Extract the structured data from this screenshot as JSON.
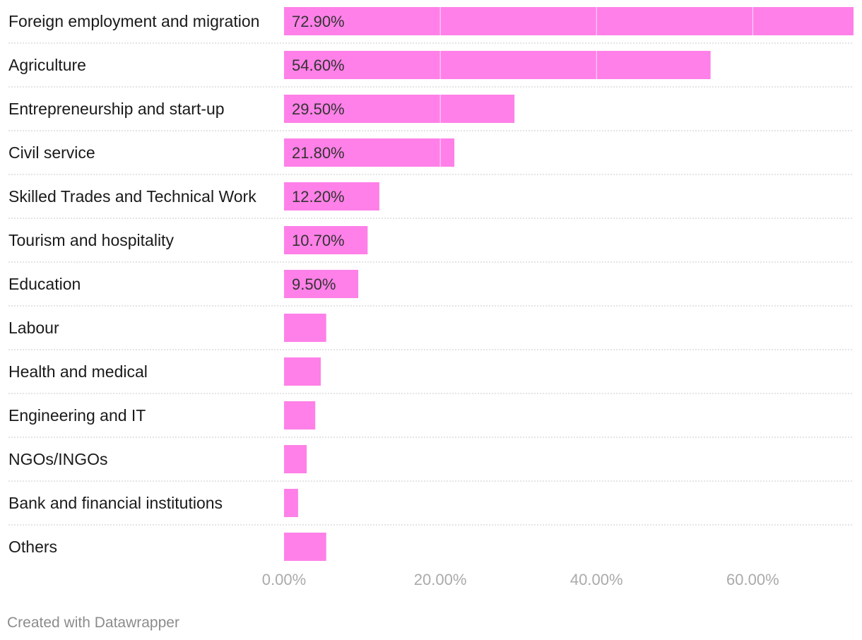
{
  "chart_data": {
    "type": "bar",
    "orientation": "horizontal",
    "categories": [
      "Foreign employment and migration",
      "Agriculture",
      "Entrepreneurship and start-up",
      "Civil service",
      "Skilled Trades and Technical Work",
      "Tourism and hospitality",
      "Education",
      "Labour",
      "Health and medical",
      "Engineering and IT",
      "NGOs/INGOs",
      "Bank and financial institutions",
      "Others"
    ],
    "values": [
      72.9,
      54.6,
      29.5,
      21.8,
      12.2,
      10.7,
      9.5,
      5.4,
      4.7,
      4.0,
      2.9,
      1.8,
      5.4
    ],
    "value_labels": [
      "72.90%",
      "54.60%",
      "29.50%",
      "21.80%",
      "12.20%",
      "10.70%",
      "9.50%",
      "",
      "",
      "",
      "",
      "",
      ""
    ],
    "xlim": [
      0,
      72.9
    ],
    "x_ticks": [
      0,
      20,
      40,
      60
    ],
    "x_tick_labels": [
      "0.00%",
      "20.00%",
      "40.00%",
      "60.00%"
    ],
    "bar_color": "#ff80e8",
    "title": "",
    "xlabel": "",
    "ylabel": ""
  },
  "footer": {
    "credit": "Created with Datawrapper"
  }
}
